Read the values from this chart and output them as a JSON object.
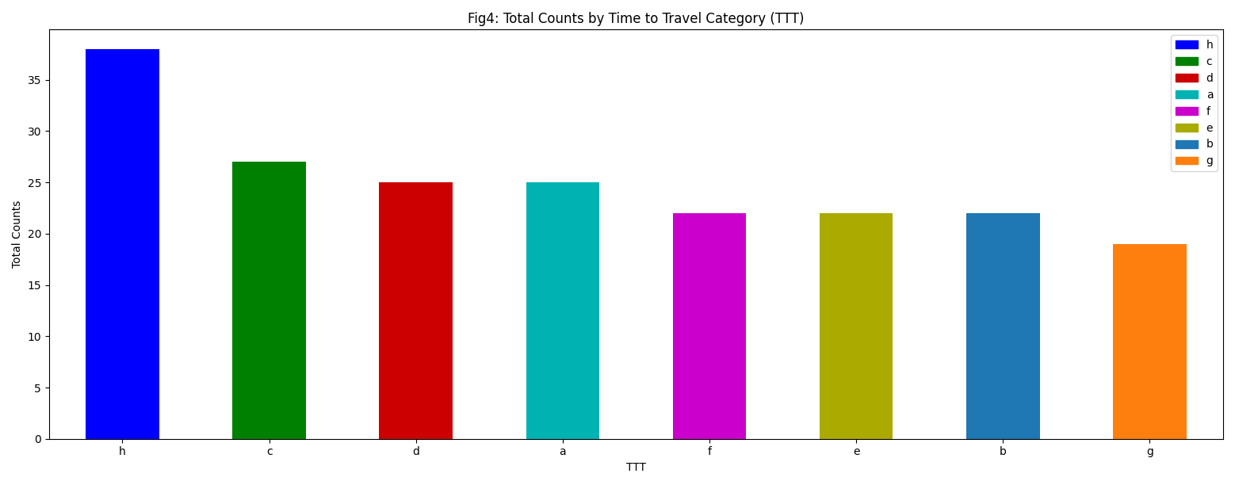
{
  "categories": [
    "h",
    "c",
    "d",
    "a",
    "f",
    "e",
    "b",
    "g"
  ],
  "values": [
    38,
    27,
    25,
    25,
    22,
    22,
    22,
    19
  ],
  "colors": [
    "#0000ff",
    "#008000",
    "#cc0000",
    "#00b3b3",
    "#cc00cc",
    "#aaaa00",
    "#1f77b4",
    "#ff7f0e"
  ],
  "title": "Fig4: Total Counts by Time to Travel Category (TTT)",
  "xlabel": "TTT",
  "ylabel": "Total Counts",
  "legend_labels": [
    "h",
    "c",
    "d",
    "a",
    "f",
    "e",
    "b",
    "g"
  ]
}
